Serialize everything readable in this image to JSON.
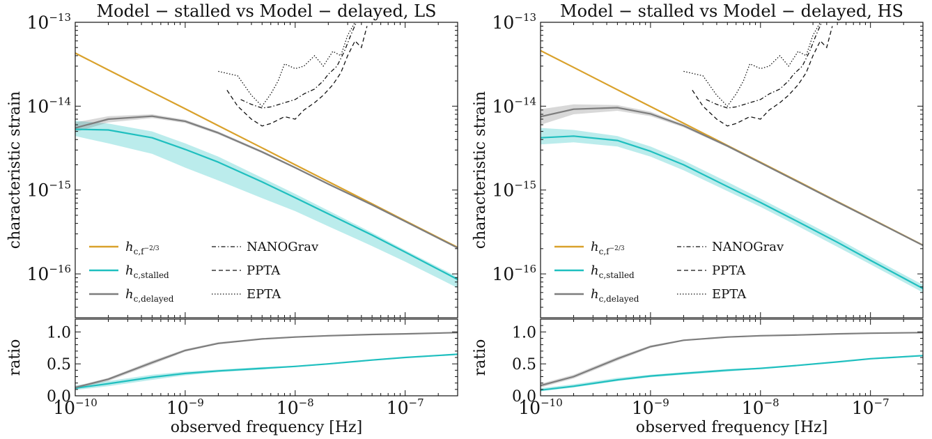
{
  "chart_data": [
    {
      "type": "line",
      "title": "Model − stalled vs Model − delayed,  LS",
      "ylabel": "characteristic strain",
      "xlabel": "observed frequency [Hz]",
      "ratio_ylabel": "ratio",
      "x_scale": "log",
      "y_scale": "log",
      "xlim": [
        1e-10,
        3e-07
      ],
      "ylim": [
        3e-17,
        1e-13
      ],
      "ratio_ylim": [
        0.0,
        1.2
      ],
      "x_ticks": [
        "10^-10",
        "10^-9",
        "10^-8",
        "10^-7"
      ],
      "y_ticks": [
        "10^-13",
        "10^-14",
        "10^-15",
        "10^-16"
      ],
      "ratio_ticks": [
        "0.0",
        "0.5",
        "1.0"
      ],
      "legend_position": "bottom-left",
      "x": [
        1e-10,
        2e-10,
        5e-10,
        1e-09,
        2e-09,
        5e-09,
        1e-08,
        2e-08,
        5e-08,
        1e-07,
        3e-07
      ],
      "series": [
        {
          "name": "h_{c,f^-2/3}",
          "legend_main": "h",
          "legend_sub": "c,f",
          "legend_sup": "−2/3",
          "color": "#d9a12b",
          "values": [
            4.3e-14,
            2.7e-14,
            1.47e-14,
            9.3e-15,
            5.85e-15,
            3.18e-15,
            2e-15,
            1.26e-15,
            6.85e-16,
            4.3e-16,
            2.07e-16
          ]
        },
        {
          "name": "h_{c,stalled}",
          "legend_main": "h",
          "legend_sub": "c,stalled",
          "color": "#1fbfbf",
          "band_lower": [
            4.4e-15,
            3.6e-15,
            2.7e-15,
            1.85e-15,
            1.3e-15,
            8e-16,
            5.6e-16,
            3.7e-16,
            2.15e-16,
            1.4e-16,
            6.8e-17
          ],
          "band_upper": [
            6.7e-15,
            6.2e-15,
            5e-15,
            3.6e-15,
            2.5e-15,
            1.4e-15,
            9e-16,
            5.7e-16,
            3.1e-16,
            1.92e-16,
            9.2e-17
          ],
          "values": [
            5.3e-15,
            5.2e-15,
            4.2e-15,
            3.05e-15,
            2.15e-15,
            1.25e-15,
            8.1e-16,
            5.2e-16,
            2.9e-16,
            1.82e-16,
            8.6e-17
          ]
        },
        {
          "name": "h_{c,delayed}",
          "legend_main": "h",
          "legend_sub": "c,delayed",
          "color": "#7d7d7d",
          "band_lower": [
            4.9e-15,
            6.4e-15,
            7.2e-15,
            6.3e-15,
            4.6e-15,
            2.75e-15,
            1.8e-15,
            1.15e-15,
            6.5e-16,
            4.15e-16,
            2e-16
          ],
          "band_upper": [
            6.4e-15,
            7.6e-15,
            8e-15,
            6.9e-15,
            5e-15,
            2.95e-15,
            1.9e-15,
            1.21e-15,
            6.8e-16,
            4.3e-16,
            2.08e-16
          ],
          "values": [
            5.5e-15,
            7e-15,
            7.6e-15,
            6.6e-15,
            4.8e-15,
            2.85e-15,
            1.85e-15,
            1.18e-15,
            6.65e-16,
            4.22e-16,
            2.04e-16
          ]
        }
      ],
      "ratio_series": [
        {
          "name": "stalled / f^-2/3",
          "color": "#1fbfbf",
          "values": [
            0.12,
            0.19,
            0.29,
            0.35,
            0.39,
            0.43,
            0.46,
            0.5,
            0.56,
            0.6,
            0.65
          ],
          "band_lower": [
            0.09,
            0.15,
            0.25,
            0.32,
            0.37,
            0.41,
            0.45,
            0.49,
            0.55,
            0.59,
            0.64
          ],
          "band_upper": [
            0.16,
            0.23,
            0.33,
            0.38,
            0.41,
            0.45,
            0.47,
            0.51,
            0.57,
            0.61,
            0.66
          ]
        },
        {
          "name": "delayed / f^-2/3",
          "color": "#7d7d7d",
          "values": [
            0.13,
            0.26,
            0.52,
            0.71,
            0.82,
            0.89,
            0.92,
            0.94,
            0.96,
            0.97,
            0.99
          ],
          "band_lower": [
            0.11,
            0.23,
            0.49,
            0.69,
            0.81,
            0.88,
            0.91,
            0.93,
            0.96,
            0.97,
            0.98
          ],
          "band_upper": [
            0.15,
            0.28,
            0.55,
            0.73,
            0.84,
            0.9,
            0.93,
            0.95,
            0.97,
            0.98,
            0.99
          ]
        }
      ],
      "pta_limits": [
        {
          "name": "NANOGrav",
          "style": "dashdot",
          "x": [
            3.2e-09,
            4e-09,
            5e-09,
            6e-09,
            8e-09,
            1e-08,
            1.2e-08,
            1.5e-08,
            1.8e-08,
            2e-08,
            2.4e-08,
            2.8e-08,
            3.2e-08,
            3.6e-08
          ],
          "y": [
            1.2e-14,
            1.05e-14,
            9.5e-15,
            9.8e-15,
            1.1e-14,
            1.2e-14,
            1.4e-14,
            1.6e-14,
            2e-14,
            2.4e-14,
            3e-14,
            4.5e-14,
            7e-14,
            1e-13
          ]
        },
        {
          "name": "PPTA",
          "style": "dashed",
          "x": [
            2.4e-09,
            3e-09,
            4e-09,
            5e-09,
            6e-09,
            8e-09,
            1e-08,
            1.2e-08,
            1.5e-08,
            1.8e-08,
            2.2e-08,
            2.6e-08,
            3e-08,
            3.5e-08,
            4e-08,
            4.5e-08
          ],
          "y": [
            1.55e-14,
            1e-14,
            7e-15,
            5.8e-15,
            6.2e-15,
            7.5e-15,
            7e-15,
            9e-15,
            1.1e-14,
            1.35e-14,
            1.8e-14,
            2.5e-14,
            4e-14,
            6e-14,
            5e-14,
            9e-14
          ]
        },
        {
          "name": "EPTA",
          "style": "dotted",
          "x": [
            2e-09,
            3e-09,
            4e-09,
            5e-09,
            6e-09,
            7e-09,
            8e-09,
            1e-08,
            1.2e-08,
            1.5e-08,
            1.8e-08,
            2.2e-08,
            2.6e-08,
            3e-08,
            3.5e-08
          ],
          "y": [
            2.6e-14,
            2.3e-14,
            1.35e-14,
            1e-14,
            1.4e-14,
            2e-14,
            3.2e-14,
            2.8e-14,
            3e-14,
            4e-14,
            3e-14,
            4.5e-14,
            4e-14,
            7e-14,
            1e-13
          ]
        }
      ]
    },
    {
      "type": "line",
      "title": "Model − stalled vs Model − delayed,  HS",
      "ylabel": "characteristic strain",
      "xlabel": "observed frequency [Hz]",
      "ratio_ylabel": "ratio",
      "x_scale": "log",
      "y_scale": "log",
      "xlim": [
        1e-10,
        3e-07
      ],
      "ylim": [
        3e-17,
        1e-13
      ],
      "ratio_ylim": [
        0.0,
        1.2
      ],
      "x_ticks": [
        "10^-10",
        "10^-9",
        "10^-8",
        "10^-7"
      ],
      "y_ticks": [
        "10^-13",
        "10^-14",
        "10^-15",
        "10^-16"
      ],
      "ratio_ticks": [
        "0.0",
        "0.5",
        "1.0"
      ],
      "legend_position": "bottom-left",
      "x": [
        1e-10,
        2e-10,
        5e-10,
        1e-09,
        2e-09,
        5e-09,
        1e-08,
        2e-08,
        5e-08,
        1e-07,
        3e-07
      ],
      "series": [
        {
          "name": "h_{c,f^-2/3}",
          "legend_main": "h",
          "legend_sub": "c,f",
          "legend_sup": "−2/3",
          "color": "#d9a12b",
          "values": [
            4.6e-14,
            2.9e-14,
            1.57e-14,
            9.9e-15,
            6.25e-15,
            3.4e-15,
            2.14e-15,
            1.35e-15,
            7.3e-16,
            4.6e-16,
            2.2e-16
          ]
        },
        {
          "name": "h_{c,stalled}",
          "legend_main": "h",
          "legend_sub": "c,stalled",
          "color": "#1fbfbf",
          "band_lower": [
            3.5e-15,
            3.7e-15,
            3.3e-15,
            2.5e-15,
            1.72e-15,
            9.7e-16,
            6.3e-16,
            3.95e-16,
            2.1e-16,
            1.3e-16,
            6e-17
          ],
          "band_upper": [
            5.5e-15,
            5.2e-15,
            4.4e-15,
            3.3e-15,
            2.25e-15,
            1.25e-15,
            7.9e-16,
            4.95e-16,
            2.65e-16,
            1.6e-16,
            7.4e-17
          ],
          "values": [
            4.2e-15,
            4.4e-15,
            3.9e-15,
            2.9e-15,
            2e-15,
            1.1e-15,
            7.1e-16,
            4.45e-16,
            2.38e-16,
            1.45e-16,
            6.7e-17
          ]
        },
        {
          "name": "h_{c,delayed}",
          "legend_main": "h",
          "legend_sub": "c,delayed",
          "color": "#7d7d7d",
          "band_lower": [
            6e-15,
            8e-15,
            8.8e-15,
            7.6e-15,
            5.6e-15,
            3.25e-15,
            2.06e-15,
            1.3e-15,
            7e-16,
            4.45e-16,
            2.15e-16
          ],
          "band_upper": [
            9.2e-15,
            1.05e-14,
            1.03e-14,
            8.6e-15,
            6.1e-15,
            3.45e-15,
            2.16e-15,
            1.36e-15,
            7.35e-16,
            4.65e-16,
            2.22e-16
          ],
          "values": [
            7.5e-15,
            9.2e-15,
            9.6e-15,
            8.1e-15,
            5.85e-15,
            3.35e-15,
            2.11e-15,
            1.33e-15,
            7.2e-16,
            4.55e-16,
            2.19e-16
          ]
        }
      ],
      "ratio_series": [
        {
          "name": "stalled / f^-2/3",
          "color": "#1fbfbf",
          "values": [
            0.09,
            0.15,
            0.25,
            0.31,
            0.35,
            0.4,
            0.43,
            0.47,
            0.53,
            0.58,
            0.63
          ],
          "band_lower": [
            0.07,
            0.13,
            0.23,
            0.29,
            0.33,
            0.38,
            0.42,
            0.46,
            0.52,
            0.57,
            0.62
          ],
          "band_upper": [
            0.12,
            0.18,
            0.28,
            0.33,
            0.37,
            0.42,
            0.44,
            0.48,
            0.54,
            0.59,
            0.64
          ]
        },
        {
          "name": "delayed / f^-2/3",
          "color": "#7d7d7d",
          "values": [
            0.16,
            0.3,
            0.58,
            0.77,
            0.87,
            0.92,
            0.94,
            0.95,
            0.97,
            0.98,
            0.99
          ],
          "band_lower": [
            0.13,
            0.27,
            0.55,
            0.75,
            0.86,
            0.91,
            0.93,
            0.95,
            0.97,
            0.98,
            0.99
          ],
          "band_upper": [
            0.19,
            0.33,
            0.61,
            0.79,
            0.88,
            0.93,
            0.95,
            0.96,
            0.98,
            0.99,
            0.99
          ]
        }
      ],
      "pta_limits": [
        {
          "name": "NANOGrav",
          "style": "dashdot",
          "x": [
            3.2e-09,
            4e-09,
            5e-09,
            6e-09,
            8e-09,
            1e-08,
            1.2e-08,
            1.5e-08,
            1.8e-08,
            2e-08,
            2.4e-08,
            2.8e-08,
            3.2e-08,
            3.6e-08
          ],
          "y": [
            1.2e-14,
            1.05e-14,
            9.5e-15,
            9.8e-15,
            1.1e-14,
            1.2e-14,
            1.4e-14,
            1.6e-14,
            2e-14,
            2.4e-14,
            3e-14,
            4.5e-14,
            7e-14,
            1e-13
          ]
        },
        {
          "name": "PPTA",
          "style": "dashed",
          "x": [
            2.4e-09,
            3e-09,
            4e-09,
            5e-09,
            6e-09,
            8e-09,
            1e-08,
            1.2e-08,
            1.5e-08,
            1.8e-08,
            2.2e-08,
            2.6e-08,
            3e-08,
            3.5e-08,
            4e-08,
            4.5e-08
          ],
          "y": [
            1.55e-14,
            1e-14,
            7e-15,
            5.8e-15,
            6.2e-15,
            7.5e-15,
            7e-15,
            9e-15,
            1.1e-14,
            1.35e-14,
            1.8e-14,
            2.5e-14,
            4e-14,
            6e-14,
            5e-14,
            9e-14
          ]
        },
        {
          "name": "EPTA",
          "style": "dotted",
          "x": [
            2e-09,
            3e-09,
            4e-09,
            5e-09,
            6e-09,
            7e-09,
            8e-09,
            1e-08,
            1.2e-08,
            1.5e-08,
            1.8e-08,
            2.2e-08,
            2.6e-08,
            3e-08,
            3.5e-08
          ],
          "y": [
            2.6e-14,
            2.3e-14,
            1.35e-14,
            1e-14,
            1.4e-14,
            2e-14,
            3.2e-14,
            2.8e-14,
            3e-14,
            4e-14,
            3e-14,
            4.5e-14,
            4e-14,
            7e-14,
            1e-13
          ]
        }
      ]
    }
  ]
}
